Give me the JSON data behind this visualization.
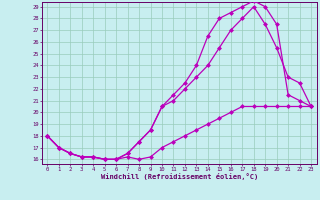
{
  "xlabel": "Windchill (Refroidissement éolien,°C)",
  "background_color": "#c8eef0",
  "grid_color": "#99ccbb",
  "line_color": "#bb00bb",
  "xlim": [
    -0.5,
    23.5
  ],
  "ylim": [
    15.6,
    29.4
  ],
  "yticks": [
    16,
    17,
    18,
    19,
    20,
    21,
    22,
    23,
    24,
    25,
    26,
    27,
    28,
    29
  ],
  "xticks": [
    0,
    1,
    2,
    3,
    4,
    5,
    6,
    7,
    8,
    9,
    10,
    11,
    12,
    13,
    14,
    15,
    16,
    17,
    18,
    19,
    20,
    21,
    22,
    23
  ],
  "line1_x": [
    0,
    1,
    2,
    3,
    4,
    5,
    6,
    7,
    8,
    9,
    10,
    11,
    12,
    13,
    14,
    15,
    16,
    17,
    18,
    19,
    20,
    21,
    22,
    23
  ],
  "line1_y": [
    18,
    17,
    16.5,
    16.2,
    16.2,
    16.0,
    16.0,
    16.2,
    16.0,
    16.2,
    17.0,
    17.5,
    18.0,
    18.5,
    19.0,
    19.5,
    20.0,
    20.5,
    20.5,
    20.5,
    20.5,
    20.5,
    20.5,
    20.5
  ],
  "line2_x": [
    0,
    1,
    2,
    3,
    4,
    5,
    6,
    7,
    8,
    9,
    10,
    11,
    12,
    13,
    14,
    15,
    16,
    17,
    18,
    19,
    20,
    21,
    22,
    23
  ],
  "line2_y": [
    18,
    17,
    16.5,
    16.2,
    16.2,
    16.0,
    16.0,
    16.5,
    17.5,
    18.5,
    20.5,
    21.5,
    22.5,
    24.0,
    26.5,
    28.0,
    28.5,
    29.0,
    29.5,
    29.0,
    27.5,
    21.5,
    21.0,
    20.5
  ],
  "line3_x": [
    0,
    1,
    2,
    3,
    4,
    5,
    6,
    7,
    8,
    9,
    10,
    11,
    12,
    13,
    14,
    15,
    16,
    17,
    18,
    19,
    20,
    21,
    22,
    23
  ],
  "line3_y": [
    18,
    17,
    16.5,
    16.2,
    16.2,
    16.0,
    16.0,
    16.5,
    17.5,
    18.5,
    20.5,
    21.0,
    22.0,
    23.0,
    24.0,
    25.5,
    27.0,
    28.0,
    29.0,
    27.5,
    25.5,
    23.0,
    22.5,
    20.5
  ]
}
